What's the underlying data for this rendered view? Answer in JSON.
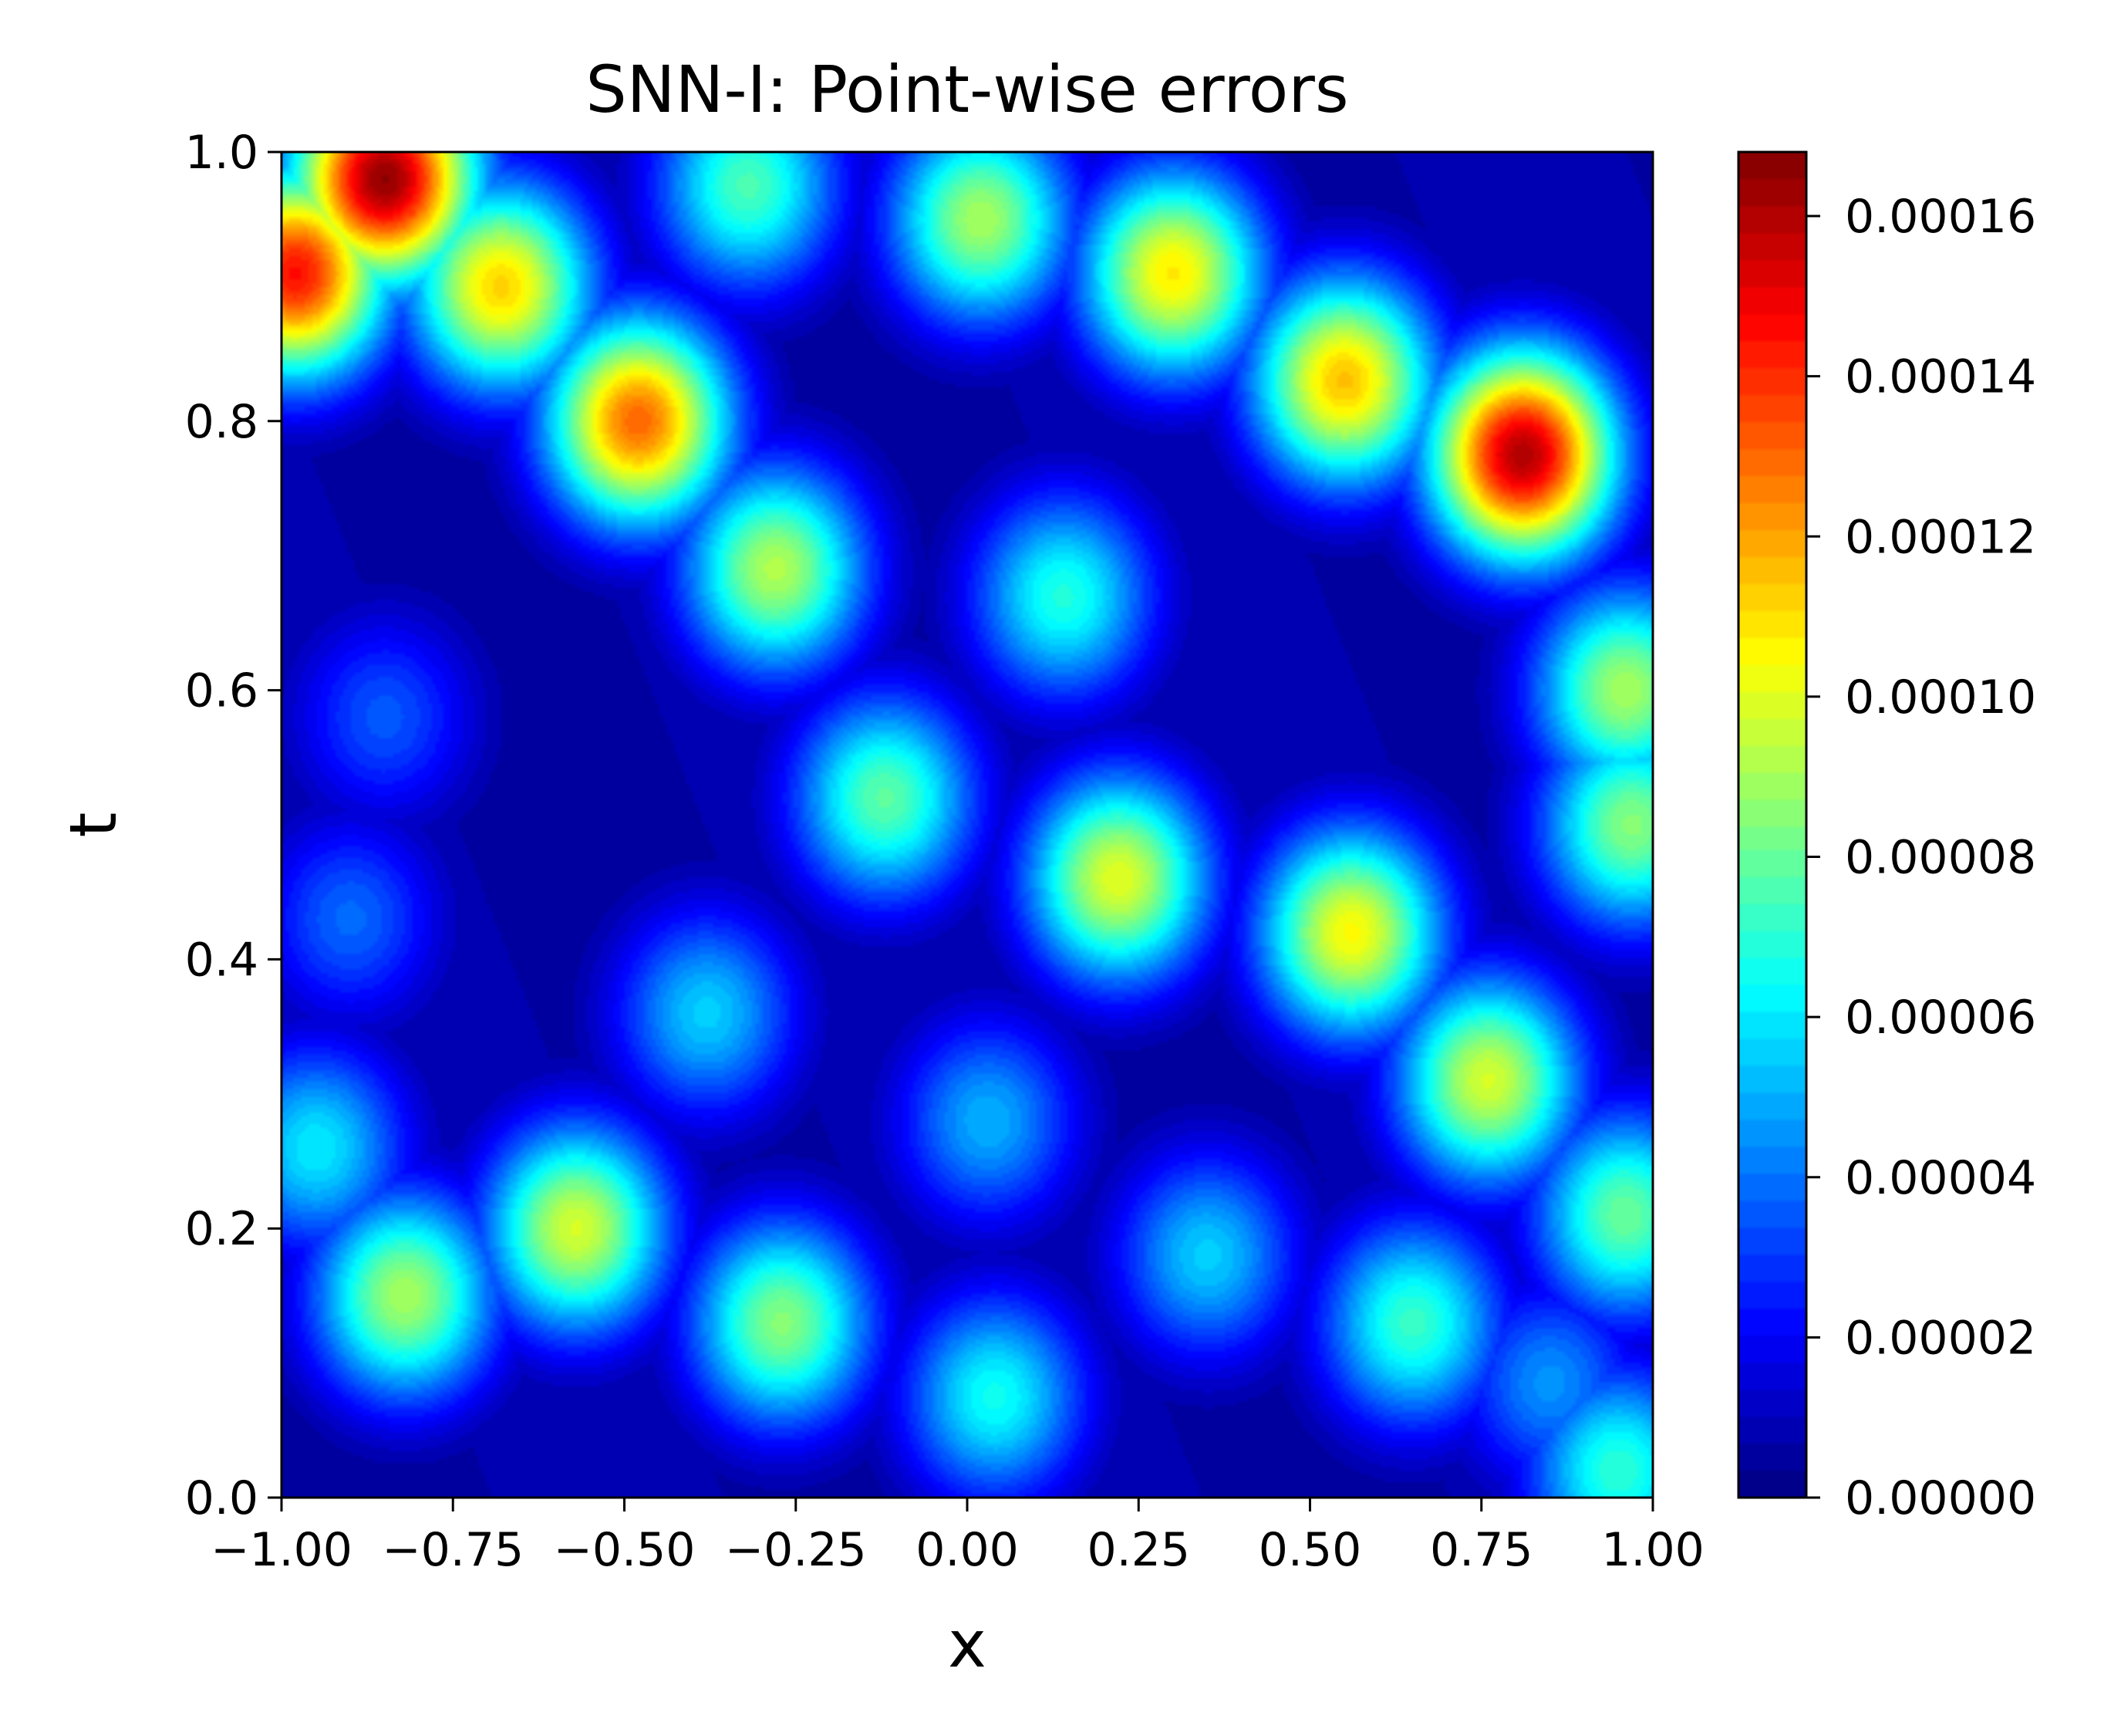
{
  "chart_data": {
    "type": "heatmap",
    "title": "SNN-I: Point-wise errors",
    "xlabel": "x",
    "ylabel": "t",
    "xlim": [
      -1.0,
      1.0
    ],
    "ylim": [
      0.0,
      1.0
    ],
    "x_ticks": [
      "−1.00",
      "−0.75",
      "−0.50",
      "−0.25",
      "0.00",
      "0.25",
      "0.50",
      "0.75",
      "1.00"
    ],
    "x_tick_values": [
      -1.0,
      -0.75,
      -0.5,
      -0.25,
      0.0,
      0.25,
      0.5,
      0.75,
      1.0
    ],
    "y_ticks": [
      "0.0",
      "0.2",
      "0.4",
      "0.6",
      "0.8",
      "1.0"
    ],
    "y_tick_values": [
      0.0,
      0.2,
      0.4,
      0.6,
      0.8,
      1.0
    ],
    "colorbar": {
      "colormap": "jet",
      "range": [
        0.0,
        0.000168
      ],
      "levels": 50,
      "ticks": [
        "0.00000",
        "0.00002",
        "0.00004",
        "0.00006",
        "0.00008",
        "0.00010",
        "0.00012",
        "0.00014",
        "0.00016"
      ],
      "tick_values": [
        0.0,
        2e-05,
        4e-05,
        6e-05,
        8e-05,
        0.0001,
        0.00012,
        0.00014,
        0.00016
      ]
    },
    "error_peaks": [
      {
        "x": -0.85,
        "t": 0.98,
        "error": 0.000165
      },
      {
        "x": -0.98,
        "t": 0.91,
        "error": 0.000145
      },
      {
        "x": -0.68,
        "t": 0.9,
        "error": 0.000112
      },
      {
        "x": -0.48,
        "t": 0.8,
        "error": 0.00013
      },
      {
        "x": -0.32,
        "t": 0.975,
        "error": 7.5e-05
      },
      {
        "x": 0.02,
        "t": 0.95,
        "error": 9e-05
      },
      {
        "x": 0.3,
        "t": 0.91,
        "error": 0.000108
      },
      {
        "x": 0.55,
        "t": 0.83,
        "error": 0.000115
      },
      {
        "x": 0.81,
        "t": 0.775,
        "error": 0.00016
      },
      {
        "x": -0.28,
        "t": 0.69,
        "error": 9.2e-05
      },
      {
        "x": 0.14,
        "t": 0.67,
        "error": 6.8e-05
      },
      {
        "x": -0.12,
        "t": 0.52,
        "error": 7.8e-05
      },
      {
        "x": 0.22,
        "t": 0.46,
        "error": 0.0001
      },
      {
        "x": 0.56,
        "t": 0.42,
        "error": 0.000105
      },
      {
        "x": 0.76,
        "t": 0.31,
        "error": 9.8e-05
      },
      {
        "x": 0.96,
        "t": 0.6,
        "error": 9e-05
      },
      {
        "x": 0.97,
        "t": 0.5,
        "error": 8.5e-05
      },
      {
        "x": -0.38,
        "t": 0.36,
        "error": 5.5e-05
      },
      {
        "x": -0.57,
        "t": 0.2,
        "error": 9.8e-05
      },
      {
        "x": -0.27,
        "t": 0.13,
        "error": 8.5e-05
      },
      {
        "x": 0.03,
        "t": 0.28,
        "error": 5e-05
      },
      {
        "x": 0.04,
        "t": 0.075,
        "error": 6.5e-05
      },
      {
        "x": 0.35,
        "t": 0.18,
        "error": 5.5e-05
      },
      {
        "x": 0.65,
        "t": 0.13,
        "error": 7.2e-05
      },
      {
        "x": 0.96,
        "t": 0.21,
        "error": 8e-05
      },
      {
        "x": -0.82,
        "t": 0.15,
        "error": 9e-05
      },
      {
        "x": -0.95,
        "t": 0.26,
        "error": 6e-05
      },
      {
        "x": -0.9,
        "t": 0.43,
        "error": 3.8e-05
      },
      {
        "x": -0.85,
        "t": 0.58,
        "error": 3.5e-05
      },
      {
        "x": 0.95,
        "t": 0.02,
        "error": 7e-05
      },
      {
        "x": 0.85,
        "t": 0.085,
        "error": 4.5e-05
      }
    ]
  }
}
